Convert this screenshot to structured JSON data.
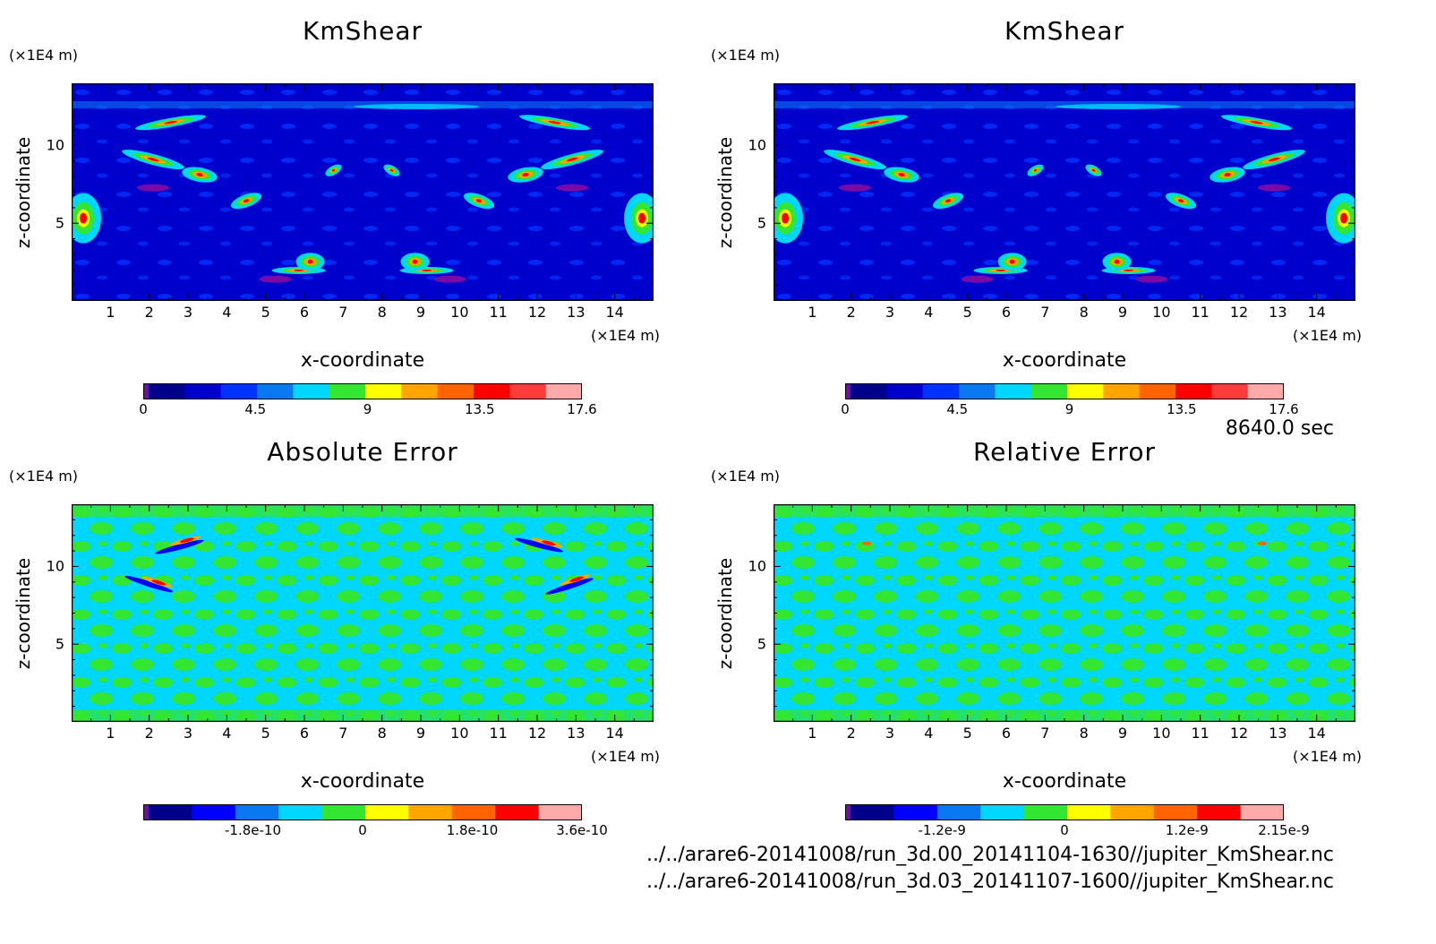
{
  "time_label": "8640.0 sec",
  "files": [
    "../../arare6-20141008/run_3d.00_20141104-1630//jupiter_KmShear.nc",
    "../../arare6-20141008/run_3d.03_20141107-1600//jupiter_KmShear.nc"
  ],
  "chart_data": [
    {
      "type": "heatmap",
      "title": "KmShear",
      "xlabel": "x-coordinate",
      "ylabel": "z-coordinate",
      "x_unit": "(×1E4 m)",
      "z_unit": "(×1E4 m)",
      "xlim": [
        0,
        15
      ],
      "ylim": [
        0,
        14
      ],
      "x_ticks": [
        "1",
        "2",
        "3",
        "4",
        "5",
        "6",
        "7",
        "8",
        "9",
        "10",
        "11",
        "12",
        "13",
        "14"
      ],
      "y_ticks": [
        "5",
        "10"
      ],
      "colorbar": {
        "colors": [
          "#7a0aa8",
          "#00008b",
          "#0000cd",
          "#0032ff",
          "#0a78f0",
          "#00d7ff",
          "#32e632",
          "#ffff00",
          "#ffa500",
          "#ff6400",
          "#ff0000",
          "#ff3c3c",
          "#ffaaaa"
        ],
        "tick_labels": [
          "0",
          "4.5",
          "9",
          "13.5",
          "17.6"
        ],
        "range": [
          0,
          17.6
        ]
      },
      "palette": "kmshear"
    },
    {
      "type": "heatmap",
      "title": "KmShear",
      "xlabel": "x-coordinate",
      "ylabel": "z-coordinate",
      "x_unit": "(×1E4 m)",
      "z_unit": "(×1E4 m)",
      "xlim": [
        0,
        15
      ],
      "ylim": [
        0,
        14
      ],
      "x_ticks": [
        "1",
        "2",
        "3",
        "4",
        "5",
        "6",
        "7",
        "8",
        "9",
        "10",
        "11",
        "12",
        "13",
        "14"
      ],
      "y_ticks": [
        "5",
        "10"
      ],
      "colorbar": {
        "colors": [
          "#7a0aa8",
          "#00008b",
          "#0000cd",
          "#0032ff",
          "#0a78f0",
          "#00d7ff",
          "#32e632",
          "#ffff00",
          "#ffa500",
          "#ff6400",
          "#ff0000",
          "#ff3c3c",
          "#ffaaaa"
        ],
        "tick_labels": [
          "0",
          "4.5",
          "9",
          "13.5",
          "17.6"
        ],
        "range": [
          0,
          17.6
        ]
      },
      "palette": "kmshear"
    },
    {
      "type": "heatmap",
      "title": "Absolute Error",
      "xlabel": "x-coordinate",
      "ylabel": "z-coordinate",
      "x_unit": "(×1E4 m)",
      "z_unit": "(×1E4 m)",
      "xlim": [
        0,
        15
      ],
      "ylim": [
        0,
        14
      ],
      "x_ticks": [
        "1",
        "2",
        "3",
        "4",
        "5",
        "6",
        "7",
        "8",
        "9",
        "10",
        "11",
        "12",
        "13",
        "14"
      ],
      "y_ticks": [
        "5",
        "10"
      ],
      "colorbar": {
        "colors": [
          "#7a0aa8",
          "#00008b",
          "#0000ff",
          "#0a78f0",
          "#00d7ff",
          "#32e632",
          "#ffff00",
          "#ffa500",
          "#ff6400",
          "#ff0000",
          "#ffaaaa"
        ],
        "tick_labels": [
          "-1.8e-10",
          "0",
          "1.8e-10",
          "3.6e-10"
        ],
        "range": [
          -3.6e-10,
          3.6e-10
        ]
      },
      "palette": "abs"
    },
    {
      "type": "heatmap",
      "title": "Relative Error",
      "xlabel": "x-coordinate",
      "ylabel": "z-coordinate",
      "x_unit": "(×1E4 m)",
      "z_unit": "(×1E4 m)",
      "xlim": [
        0,
        15
      ],
      "ylim": [
        0,
        14
      ],
      "x_ticks": [
        "1",
        "2",
        "3",
        "4",
        "5",
        "6",
        "7",
        "8",
        "9",
        "10",
        "11",
        "12",
        "13",
        "14"
      ],
      "y_ticks": [
        "5",
        "10"
      ],
      "colorbar": {
        "colors": [
          "#7a0aa8",
          "#00008b",
          "#0000ff",
          "#0a78f0",
          "#00d7ff",
          "#32e632",
          "#ffff00",
          "#ffa500",
          "#ff6400",
          "#ff0000",
          "#ffaaaa"
        ],
        "tick_labels": [
          "-1.2e-9",
          "0",
          "1.2e-9",
          "2.15e-9"
        ],
        "range": [
          -2.15e-09,
          2.15e-09
        ]
      },
      "palette": "rel"
    }
  ]
}
